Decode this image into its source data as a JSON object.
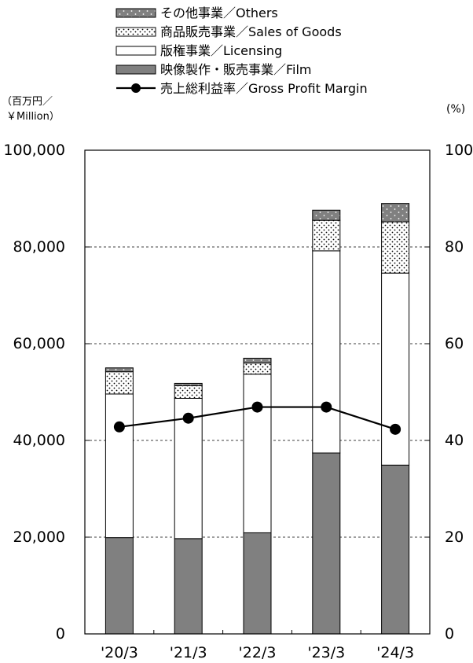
{
  "chart_data": {
    "type": "bar",
    "stacked": true,
    "categories": [
      "'20/3",
      "'21/3",
      "'22/3",
      "'23/3",
      "'24/3"
    ],
    "series": [
      {
        "name": "映像製作・販売事業／Film",
        "values": [
          19900,
          19700,
          20900,
          37400,
          34900
        ],
        "color": "#808080",
        "pattern": "solid"
      },
      {
        "name": "版権事業／Licensing",
        "values": [
          29700,
          29000,
          32800,
          41800,
          39700
        ],
        "color": "#ffffff",
        "pattern": "none"
      },
      {
        "name": "商品販売事業／Sales of Goods",
        "values": [
          4600,
          2600,
          2300,
          6300,
          10600
        ],
        "color": "#ffffff",
        "pattern": "dots"
      },
      {
        "name": "その他事業／Others",
        "values": [
          800,
          500,
          1000,
          2100,
          3800
        ],
        "color": "#808080",
        "pattern": "light-dots"
      }
    ],
    "line_series": {
      "name": "売上総利益率／Gross Profit Margin",
      "values": [
        42.8,
        44.6,
        46.9,
        46.9,
        42.3
      ],
      "axis": "right"
    },
    "left_axis": {
      "label_line1": "（百万円／",
      "label_line2": "￥Million）",
      "ylim": [
        0,
        100000
      ],
      "ticks": [
        "0",
        "20,000",
        "40,000",
        "60,000",
        "80,000",
        "100,000"
      ]
    },
    "right_axis": {
      "label": "(%)",
      "ylim": [
        0,
        100
      ],
      "ticks": [
        "0",
        "20",
        "40",
        "60",
        "80",
        "100"
      ]
    },
    "legend_order": [
      3,
      2,
      1,
      0
    ],
    "legend_placement": "top",
    "grid": "dashed-horizontal"
  }
}
